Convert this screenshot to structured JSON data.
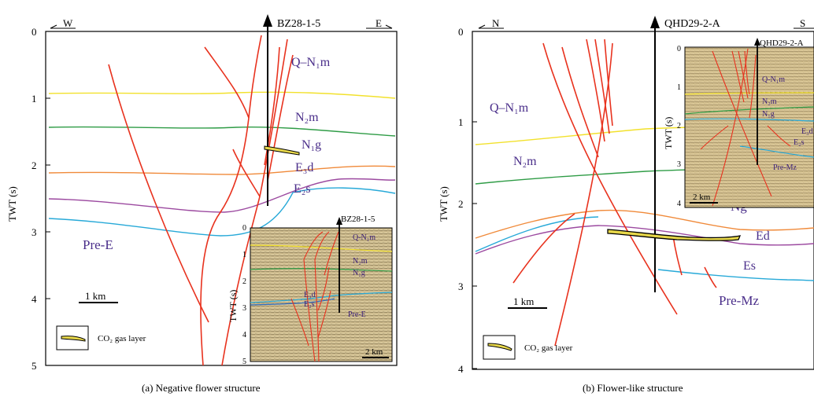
{
  "panel_a": {
    "caption": "(a) Negative flower structure",
    "dir_left": "W",
    "dir_right": "E",
    "well": "BZ28-1-5",
    "y_axis_label": "TWT (s)",
    "y_ticks": [
      "0",
      "1",
      "2",
      "3",
      "4",
      "5"
    ],
    "units": {
      "q_n1m": "Q–N₁m",
      "n2m": "N₂m",
      "n1g": "N₁g",
      "e3d": "E₃d",
      "e2s": "E₂s",
      "pre_e": "Pre-E"
    },
    "scale_bar": "1 km",
    "legend": "CO₂ gas layer",
    "inset": {
      "well": "BZ28-1-5",
      "y_axis_label": "TWT (s)",
      "y_ticks": [
        "0",
        "1",
        "2",
        "3",
        "4",
        "5"
      ],
      "units": [
        "Q-N₁m",
        "N₂m",
        "N₁g",
        "E₃d",
        "E₂s",
        "Pre-E"
      ],
      "scale_bar": "2 km"
    }
  },
  "panel_b": {
    "caption": "(b)  Flower-like structure",
    "dir_left": "N",
    "dir_right": "S",
    "well": "QHD29-2-A",
    "y_axis_label": "TWT (s)",
    "y_ticks": [
      "0",
      "1",
      "2",
      "3",
      "4"
    ],
    "units": {
      "q_n1m": "Q–N₁m",
      "n2m": "N₂m",
      "ng": "Ng",
      "ed": "Ed",
      "es": "Es",
      "pre_mz": "Pre-Mz"
    },
    "scale_bar": "1 km",
    "legend": "CO₂ gas layer",
    "inset": {
      "well": "QHD29-2-A",
      "y_axis_label": "TWT (s)",
      "y_ticks": [
        "0",
        "1",
        "2",
        "3",
        "4"
      ],
      "units": [
        "Q-N₁m",
        "N₂m",
        "N₁g",
        "E₃d",
        "E₂s",
        "Pre-Mz"
      ],
      "scale_bar": "2 km"
    }
  },
  "colors": {
    "fault": "#e8321e",
    "yellow_horizon": "#f2e12c",
    "green_horizon": "#2f9c46",
    "orange_horizon": "#f08a3a",
    "purple_horizon": "#9c4aa0",
    "cyan_horizon": "#27a9d8",
    "label": "#4a2e8a",
    "gas": "#e8d84a"
  }
}
